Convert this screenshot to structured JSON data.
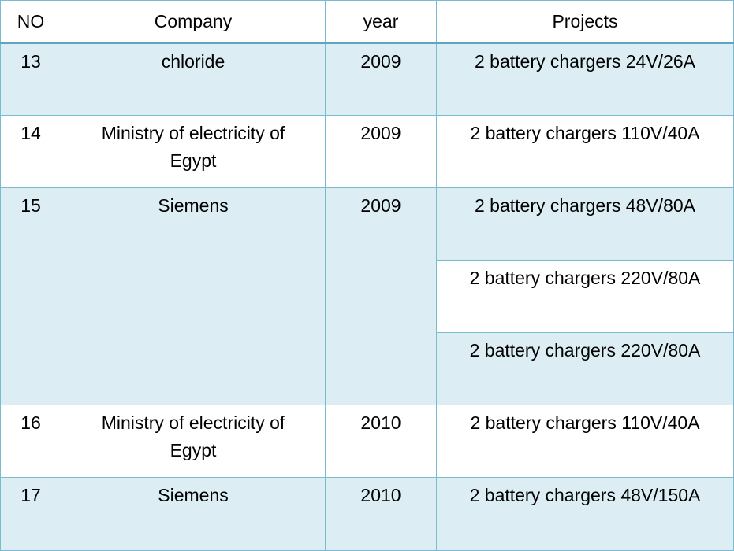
{
  "table": {
    "headers": {
      "no": "NO",
      "company": "Company",
      "year": "year",
      "projects": "Projects"
    },
    "rows": [
      {
        "no": "13",
        "company_line1": "chloride",
        "company_line2": "",
        "year": "2009",
        "projects": [
          "2 battery chargers 24V/26A"
        ]
      },
      {
        "no": "14",
        "company_line1": "Ministry of electricity of",
        "company_line2": "Egypt",
        "year": "2009",
        "projects": [
          "2 battery chargers 110V/40A"
        ]
      },
      {
        "no": "15",
        "company_line1": "Siemens",
        "company_line2": "",
        "year": "2009",
        "projects": [
          "2 battery chargers 48V/80A",
          "2 battery chargers 220V/80A",
          "2 battery chargers 220V/80A"
        ]
      },
      {
        "no": "16",
        "company_line1": "Ministry of electricity of",
        "company_line2": "Egypt",
        "year": "2010",
        "projects": [
          "2 battery chargers 110V/40A"
        ]
      },
      {
        "no": "17",
        "company_line1": "Siemens",
        "company_line2": "",
        "year": "2010",
        "projects": [
          "2 battery chargers 48V/150A"
        ]
      }
    ]
  },
  "colors": {
    "shaded_row": "#dceef4",
    "border": "#78bcd0",
    "header_rule": "#5ba7c1"
  }
}
